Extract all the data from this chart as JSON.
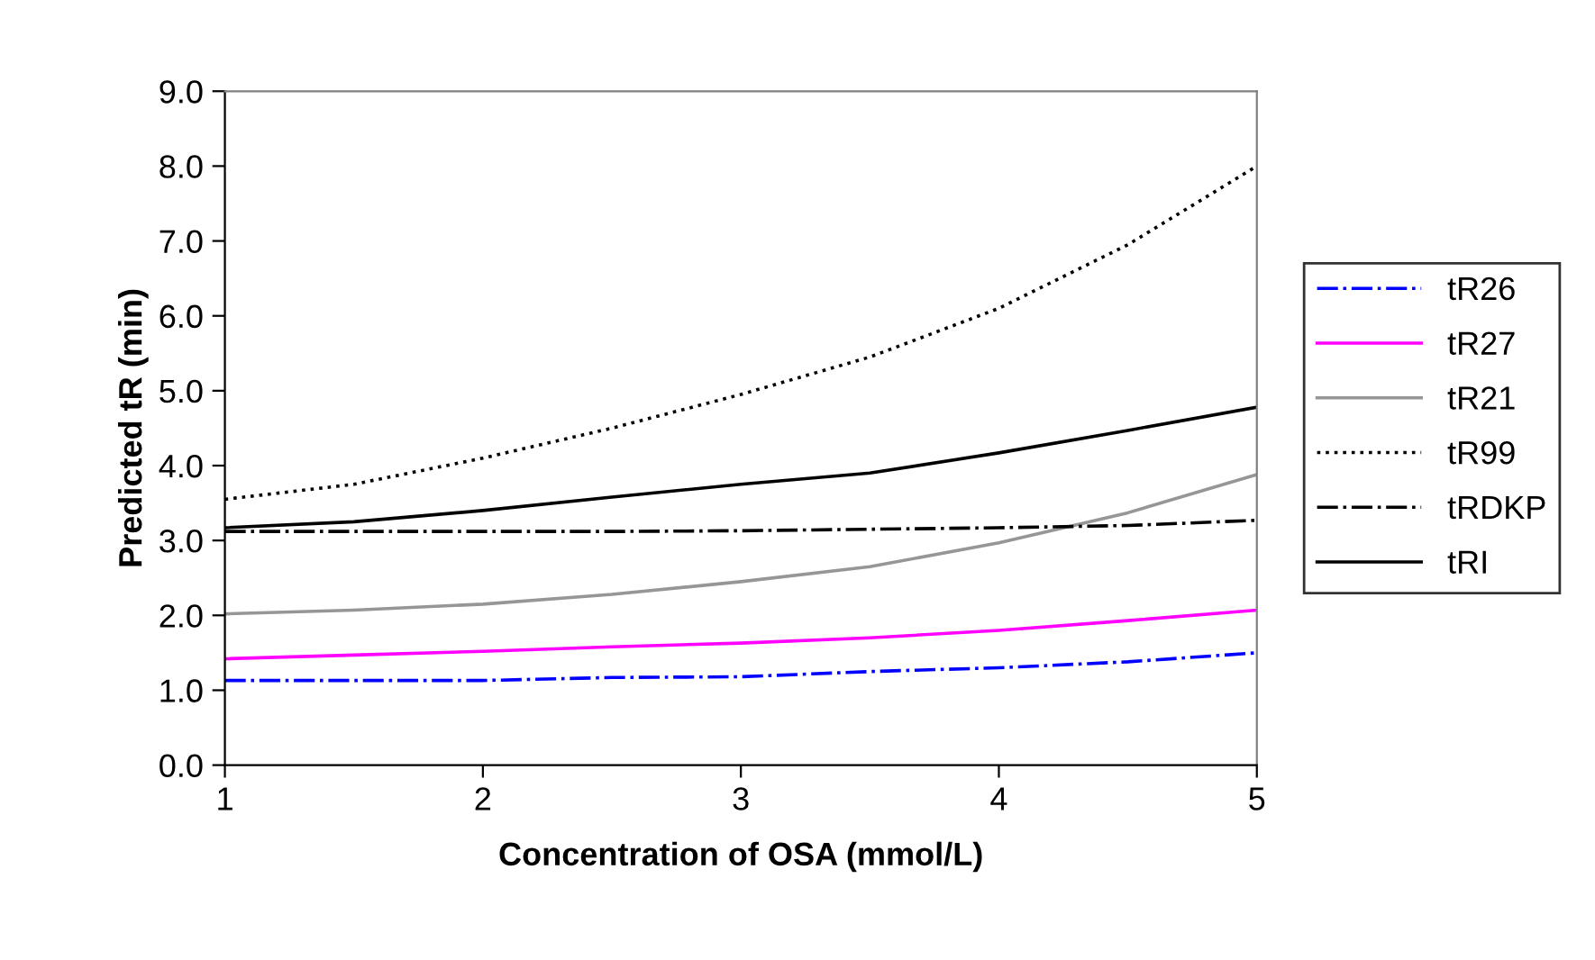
{
  "chart_data": {
    "type": "line",
    "xlabel": "Concentration of OSA (mmol/L)",
    "ylabel": "Predicted tR (min)",
    "x": [
      1,
      1.5,
      2,
      2.5,
      3,
      3.5,
      4,
      4.5,
      5
    ],
    "xlim": [
      1,
      5
    ],
    "xticks": [
      1,
      2,
      3,
      4,
      5
    ],
    "ylim": [
      0,
      9
    ],
    "yticks": [
      {
        "value": 0,
        "label": "0.0"
      },
      {
        "value": 1,
        "label": "1.0"
      },
      {
        "value": 2,
        "label": "2.0"
      },
      {
        "value": 3,
        "label": "3.0"
      },
      {
        "value": 4,
        "label": "4.0"
      },
      {
        "value": 5,
        "label": "5.0"
      },
      {
        "value": 6,
        "label": "6.0"
      },
      {
        "value": 7,
        "label": "7.0"
      },
      {
        "value": 8,
        "label": "8.0"
      },
      {
        "value": 9,
        "label": "9.0"
      }
    ],
    "grid": false,
    "legend": "right",
    "marker": "none",
    "series": [
      {
        "name": "tR26",
        "color": "#0000ff",
        "line_style": "dashdot",
        "values": [
          1.13,
          1.13,
          1.13,
          1.17,
          1.18,
          1.25,
          1.3,
          1.38,
          1.5
        ]
      },
      {
        "name": "tR27",
        "color": "#ff00ff",
        "line_style": "solid",
        "values": [
          1.42,
          1.47,
          1.52,
          1.58,
          1.63,
          1.7,
          1.8,
          1.93,
          2.07
        ]
      },
      {
        "name": "tR21",
        "color": "#969696",
        "line_style": "solid",
        "values": [
          2.02,
          2.07,
          2.15,
          2.28,
          2.45,
          2.65,
          2.97,
          3.37,
          3.88
        ]
      },
      {
        "name": "tR99",
        "color": "#000000",
        "line_style": "dotted",
        "values": [
          3.55,
          3.75,
          4.1,
          4.5,
          4.95,
          5.45,
          6.1,
          6.95,
          8.0
        ]
      },
      {
        "name": "tRDKP",
        "color": "#000000",
        "line_style": "dashdot",
        "values": [
          3.12,
          3.12,
          3.12,
          3.12,
          3.13,
          3.15,
          3.17,
          3.2,
          3.27
        ]
      },
      {
        "name": "tRI",
        "color": "#000000",
        "line_style": "solid",
        "values": [
          3.17,
          3.25,
          3.4,
          3.58,
          3.75,
          3.9,
          4.17,
          4.47,
          4.78
        ]
      }
    ]
  }
}
